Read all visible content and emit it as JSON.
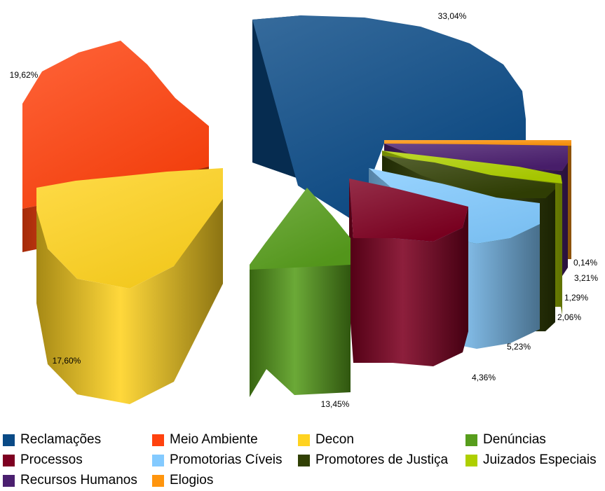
{
  "chart_data": {
    "type": "pie",
    "subtype": "exploded-3d",
    "slices": [
      {
        "name": "Reclamações",
        "value": 33.04,
        "label": "33,04%",
        "color": "#0A4A86"
      },
      {
        "name": "Meio Ambiente",
        "value": 19.62,
        "label": "19,62%",
        "color": "#FF420E"
      },
      {
        "name": "Decon",
        "value": 17.6,
        "label": "17,60%",
        "color": "#FFD320"
      },
      {
        "name": "Denúncias",
        "value": 13.45,
        "label": "13,45%",
        "color": "#579D1C"
      },
      {
        "name": "Processos",
        "value": 4.36,
        "label": "4,36%",
        "color": "#7E0021"
      },
      {
        "name": "Promotorias Cíveis",
        "value": 5.23,
        "label": "5,23%",
        "color": "#83CAFF"
      },
      {
        "name": "Promotores de Justiça",
        "value": 2.06,
        "label": "2,06%",
        "color": "#314004"
      },
      {
        "name": "Juizados Especiais",
        "value": 1.29,
        "label": "1,29%",
        "color": "#AECF00"
      },
      {
        "name": "Recursos Humanos",
        "value": 3.21,
        "label": "3,21%",
        "color": "#4B1F6F"
      },
      {
        "name": "Elogios",
        "value": 0.14,
        "label": "0,14%",
        "color": "#FF950E"
      }
    ],
    "legend_position": "bottom"
  }
}
